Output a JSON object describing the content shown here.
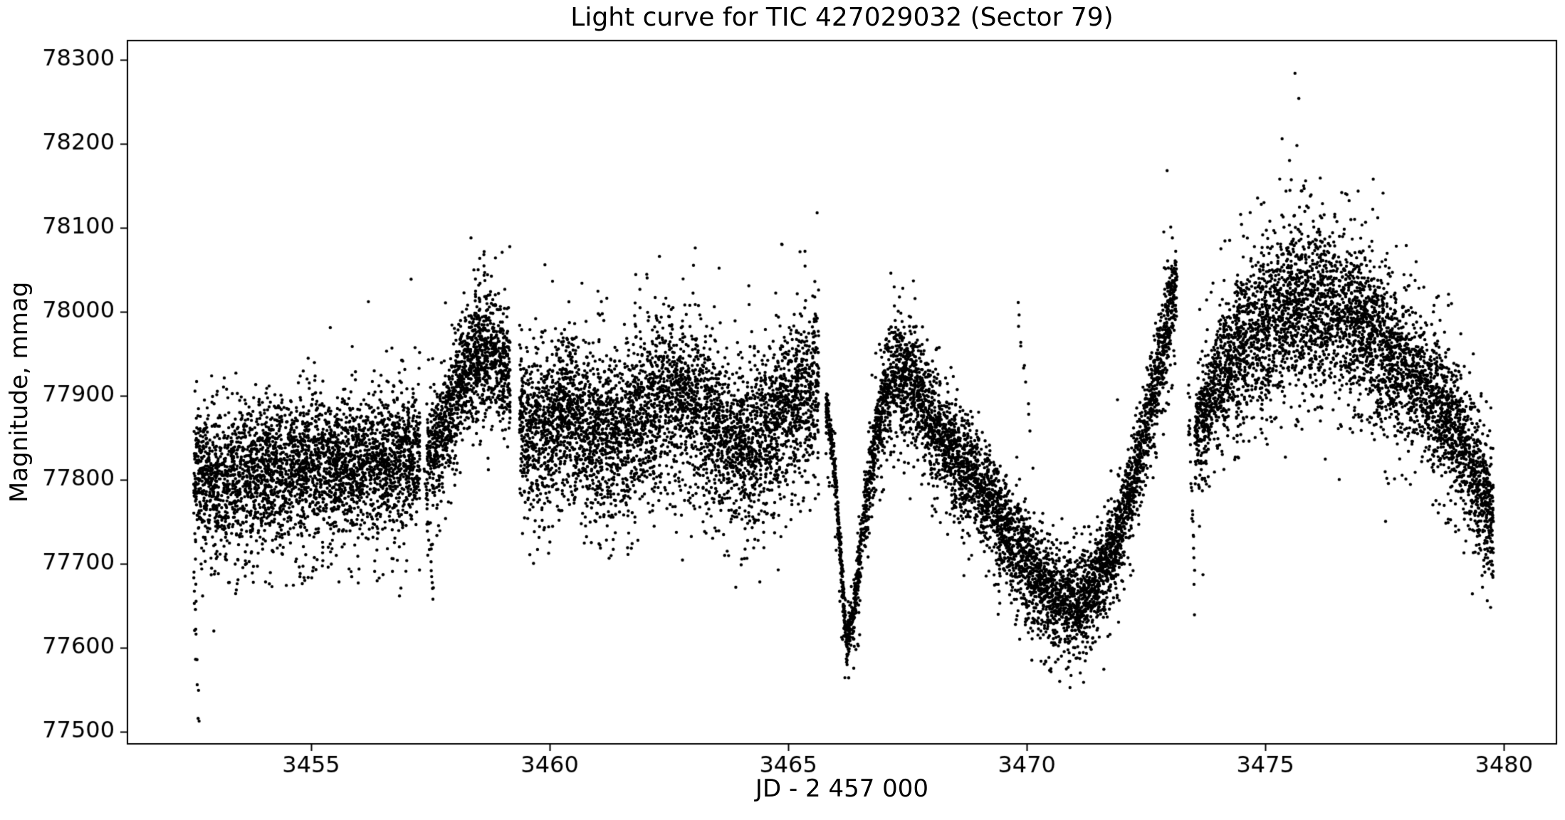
{
  "chart_data": {
    "type": "scatter",
    "title": "Light curve for TIC 427029032 (Sector 79)",
    "xlabel": "JD - 2 457 000",
    "ylabel": "Magnitude, mmag",
    "xlim": [
      3451.15,
      3481.1
    ],
    "ylim": [
      77485.6,
      78322.9
    ],
    "xticks": [
      3455,
      3460,
      3465,
      3470,
      3475,
      3480
    ],
    "yticks": [
      77500,
      77600,
      77700,
      77800,
      77900,
      78000,
      78100,
      78200,
      78300
    ],
    "grid": false,
    "legend": null,
    "marker": {
      "color": "#000000",
      "radius": 2.2
    },
    "axis_color": "#000000",
    "background": "#ffffff",
    "seed": 42,
    "segments": [
      {
        "name": "flat-start",
        "x0": 3452.54,
        "x1": 3457.28,
        "n": 3400,
        "trend": [
          [
            3452.54,
            77798
          ],
          [
            3453.2,
            77803
          ],
          [
            3454.2,
            77812
          ],
          [
            3455.2,
            77816
          ],
          [
            3456.2,
            77820
          ],
          [
            3457.28,
            77832
          ]
        ],
        "sigma": [
          [
            3452.54,
            38
          ],
          [
            3457.28,
            38
          ]
        ],
        "low_frac": 0.04,
        "low_depth": 95,
        "high_frac": 0.002,
        "high_depth": 60
      },
      {
        "name": "first-rise",
        "x0": 3457.42,
        "x1": 3459.17,
        "n": 1260,
        "trend": [
          [
            3457.42,
            77828
          ],
          [
            3457.8,
            77862
          ],
          [
            3458.1,
            77918
          ],
          [
            3458.45,
            77948
          ],
          [
            3458.8,
            77952
          ],
          [
            3459.17,
            77928
          ]
        ],
        "sigma": [
          [
            3457.42,
            30
          ],
          [
            3458.3,
            34
          ],
          [
            3459.17,
            34
          ]
        ],
        "low_frac": 0.03,
        "low_depth": 85,
        "high_frac": 0.006,
        "high_depth": 110
      },
      {
        "name": "middle-plateau",
        "x0": 3459.37,
        "x1": 3465.64,
        "n": 4500,
        "trend": [
          [
            3459.37,
            77872
          ],
          [
            3459.9,
            77858
          ],
          [
            3460.35,
            77888
          ],
          [
            3460.9,
            77856
          ],
          [
            3461.5,
            77850
          ],
          [
            3462.0,
            77882
          ],
          [
            3462.5,
            77906
          ],
          [
            3463.0,
            77898
          ],
          [
            3463.5,
            77864
          ],
          [
            3463.9,
            77840
          ],
          [
            3464.4,
            77856
          ],
          [
            3464.9,
            77886
          ],
          [
            3465.3,
            77906
          ],
          [
            3465.64,
            77916
          ]
        ],
        "sigma": [
          [
            3459.37,
            42
          ],
          [
            3462.5,
            44
          ],
          [
            3465.64,
            44
          ]
        ],
        "low_frac": 0.045,
        "low_depth": 95,
        "high_frac": 0.006,
        "high_depth": 120
      },
      {
        "name": "oscillation",
        "x0": 3465.79,
        "x1": 3473.15,
        "n": 5280,
        "trend": [
          [
            3465.79,
            77888
          ],
          [
            3465.95,
            77830
          ],
          [
            3466.1,
            77710
          ],
          [
            3466.22,
            77608
          ],
          [
            3466.35,
            77632
          ],
          [
            3466.6,
            77762
          ],
          [
            3466.85,
            77856
          ],
          [
            3467.05,
            77906
          ],
          [
            3467.3,
            77930
          ],
          [
            3467.6,
            77916
          ],
          [
            3467.9,
            77882
          ],
          [
            3468.3,
            77846
          ],
          [
            3468.7,
            77816
          ],
          [
            3469.1,
            77786
          ],
          [
            3469.5,
            77746
          ],
          [
            3469.9,
            77712
          ],
          [
            3470.3,
            77678
          ],
          [
            3470.7,
            77660
          ],
          [
            3471.1,
            77656
          ],
          [
            3471.5,
            77682
          ],
          [
            3471.9,
            77732
          ],
          [
            3472.2,
            77792
          ],
          [
            3472.5,
            77862
          ],
          [
            3472.8,
            77942
          ],
          [
            3473.0,
            78002
          ],
          [
            3473.15,
            78038
          ]
        ],
        "sigma": [
          [
            3465.79,
            10
          ],
          [
            3466.25,
            13
          ],
          [
            3466.7,
            24
          ],
          [
            3467.2,
            32
          ],
          [
            3468.0,
            30
          ],
          [
            3469.5,
            29
          ],
          [
            3470.6,
            27
          ],
          [
            3471.6,
            25
          ],
          [
            3472.5,
            28
          ],
          [
            3473.15,
            29
          ]
        ],
        "low_frac": 0.033,
        "low_depth": 75,
        "high_frac": 0.003,
        "high_depth": 70
      },
      {
        "name": "final-hump",
        "x0": 3473.52,
        "x1": 3479.78,
        "n": 4500,
        "trend": [
          [
            3473.52,
            77848
          ],
          [
            3473.9,
            77906
          ],
          [
            3474.3,
            77950
          ],
          [
            3474.8,
            77976
          ],
          [
            3475.2,
            77996
          ],
          [
            3475.7,
            78006
          ],
          [
            3476.2,
            78008
          ],
          [
            3476.7,
            77998
          ],
          [
            3477.2,
            77976
          ],
          [
            3477.7,
            77946
          ],
          [
            3478.2,
            77916
          ],
          [
            3478.7,
            77886
          ],
          [
            3479.1,
            77846
          ],
          [
            3479.45,
            77796
          ],
          [
            3479.78,
            77746
          ]
        ],
        "sigma": [
          [
            3473.52,
            30
          ],
          [
            3474.3,
            38
          ],
          [
            3475.0,
            46
          ],
          [
            3476.2,
            48
          ],
          [
            3477.2,
            44
          ],
          [
            3478.2,
            40
          ],
          [
            3479.1,
            36
          ],
          [
            3479.78,
            34
          ]
        ],
        "low_frac": 0.025,
        "low_depth": 85,
        "high_frac": 0.012,
        "high_depth": 110
      }
    ],
    "streaks": [
      {
        "name": "start-drop",
        "x0": 3452.54,
        "x1": 3452.64,
        "y_start": 77700,
        "y_end": 77516,
        "n": 15
      },
      {
        "name": "dip-3457.5",
        "x0": 3457.38,
        "x1": 3457.56,
        "y_start": 77812,
        "y_end": 77668,
        "n": 24
      },
      {
        "name": "drop-3473.4",
        "x0": 3473.38,
        "x1": 3473.52,
        "y_start": 77928,
        "y_end": 77656,
        "n": 26
      },
      {
        "name": "high-column-3470",
        "x0": 3469.8,
        "x1": 3470.08,
        "y_start": 78006,
        "y_end": 77862,
        "n": 11
      }
    ],
    "outliers": [
      [
        3456.2,
        78012
      ],
      [
        3458.35,
        78088
      ],
      [
        3458.62,
        78068
      ],
      [
        3458.5,
        78050
      ],
      [
        3459.9,
        78056
      ],
      [
        3461.05,
        77996
      ],
      [
        3462.3,
        78066
      ],
      [
        3463.05,
        78076
      ],
      [
        3463.55,
        78052
      ],
      [
        3464.87,
        78080
      ],
      [
        3465.35,
        78072
      ],
      [
        3463.9,
        77672
      ],
      [
        3467.15,
        78046
      ],
      [
        3467.4,
        78028
      ],
      [
        3469.97,
        77631
      ],
      [
        3470.12,
        77620
      ],
      [
        3470.45,
        77612
      ],
      [
        3470.9,
        77584
      ],
      [
        3471.12,
        77570
      ],
      [
        3471.35,
        77598
      ],
      [
        3472.94,
        78168
      ],
      [
        3473.05,
        78088
      ],
      [
        3473.12,
        78072
      ],
      [
        3474.5,
        78104
      ],
      [
        3474.97,
        78130
      ],
      [
        3475.3,
        78158
      ],
      [
        3475.35,
        78206
      ],
      [
        3475.62,
        78284
      ],
      [
        3475.66,
        78198
      ],
      [
        3475.7,
        78254
      ],
      [
        3475.9,
        78124
      ],
      [
        3476.15,
        78114
      ],
      [
        3476.6,
        78142
      ],
      [
        3477.25,
        78122
      ],
      [
        3479.55,
        77672
      ],
      [
        3479.6,
        77690
      ],
      [
        3479.65,
        77656
      ],
      [
        3479.72,
        77648
      ]
    ]
  }
}
